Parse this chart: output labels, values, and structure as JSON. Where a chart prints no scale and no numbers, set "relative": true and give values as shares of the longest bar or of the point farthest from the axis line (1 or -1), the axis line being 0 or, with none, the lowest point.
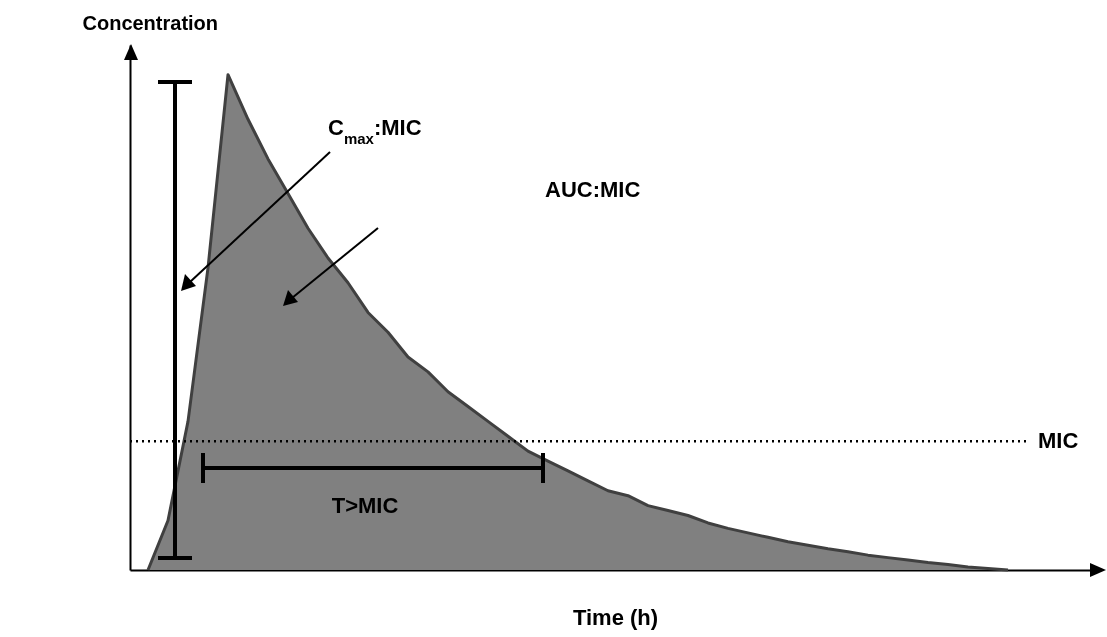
{
  "chart_data": {
    "type": "area",
    "relative": true,
    "xlabel": "Time (h)",
    "ylabel": "Concentration",
    "categories": [
      null,
      null,
      null,
      null,
      null,
      null,
      null,
      null,
      null,
      null,
      null,
      null,
      null,
      null,
      null,
      null,
      null,
      null,
      null,
      null,
      null,
      null,
      null,
      null,
      null,
      null,
      null,
      null,
      null,
      null,
      null,
      null,
      null,
      null,
      null,
      null,
      null,
      null,
      null,
      null,
      null,
      null,
      null,
      null
    ],
    "series": [
      {
        "color": "#808080",
        "values": [
          0,
          0.1,
          0.3,
          0.61,
          1,
          0.91,
          0.83,
          0.76,
          0.69,
          0.63,
          0.58,
          0.52,
          0.48,
          0.43,
          0.4,
          0.36,
          0.33,
          0.3,
          0.27,
          0.24,
          0.22,
          0.2,
          0.18,
          0.16,
          0.15,
          0.13,
          0.12,
          0.11,
          0.095,
          0.084,
          0.075,
          0.066,
          0.057,
          0.05,
          0.043,
          0.037,
          0.03,
          0.025,
          0.02,
          0.015,
          0.011,
          0.006,
          0.003,
          0
        ]
      }
    ],
    "ref_lines": [
      {
        "axis": "y",
        "value": 0.26,
        "label": "MIC",
        "color": "#000000",
        "line_style": "dotted"
      }
    ],
    "annotations": [
      "C$_{max}$:MIC",
      "AUC:MIC",
      "T>MIC"
    ],
    "grid": false
  }
}
